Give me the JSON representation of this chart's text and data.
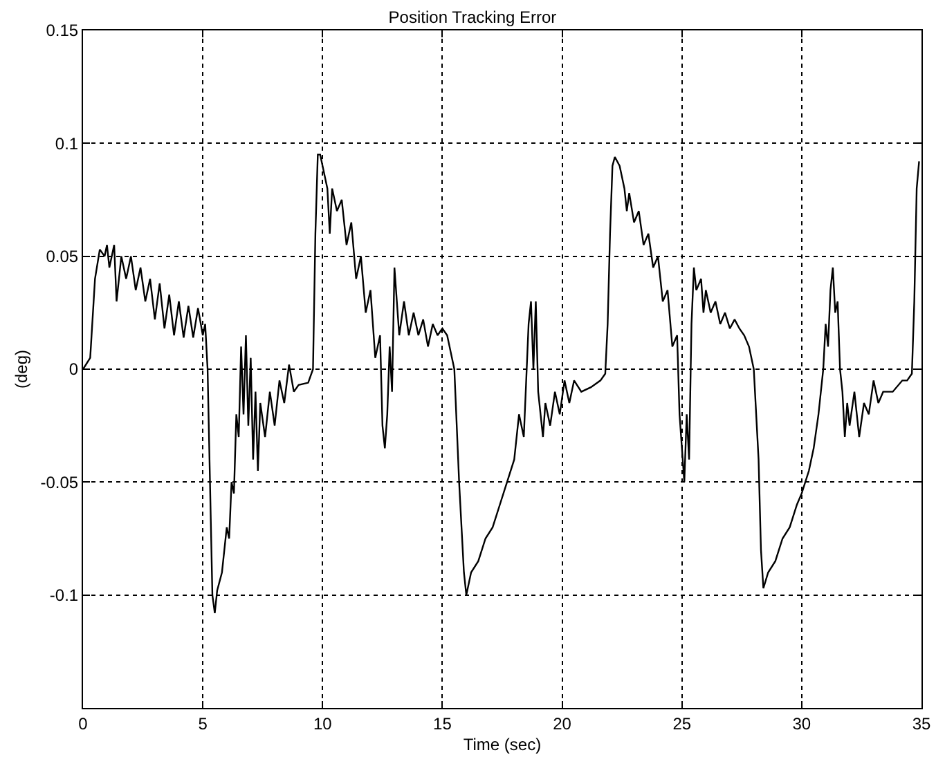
{
  "chart_data": {
    "type": "line",
    "title": "Position Tracking Error",
    "xlabel": "Time (sec)",
    "ylabel": "(deg)",
    "xlim": [
      0,
      35
    ],
    "xticks": [
      0,
      5,
      10,
      15,
      20,
      25,
      30,
      35
    ],
    "ylim": [
      -0.15,
      0.15
    ],
    "yticks": [
      {
        "value": -0.15,
        "label": null
      },
      -0.1,
      -0.05,
      0,
      0.05,
      0.1,
      0.15
    ],
    "grid": true,
    "line_style": "solid",
    "marker": "none",
    "series": [
      {
        "color": "#000000",
        "x": [
          0,
          0.3,
          0.5,
          0.7,
          0.9,
          1.0,
          1.1,
          1.3,
          1.4,
          1.6,
          1.8,
          2.0,
          2.2,
          2.4,
          2.6,
          2.8,
          3.0,
          3.2,
          3.4,
          3.6,
          3.8,
          4.0,
          4.2,
          4.4,
          4.6,
          4.8,
          5.0,
          5.1,
          5.2,
          5.3,
          5.4,
          5.5,
          5.6,
          5.8,
          5.9,
          6.0,
          6.1,
          6.2,
          6.3,
          6.4,
          6.5,
          6.6,
          6.7,
          6.8,
          6.9,
          7.0,
          7.1,
          7.2,
          7.3,
          7.4,
          7.6,
          7.8,
          8.0,
          8.2,
          8.4,
          8.6,
          8.8,
          9.0,
          9.4,
          9.6,
          9.7,
          9.8,
          9.9,
          10.0,
          10.2,
          10.3,
          10.4,
          10.6,
          10.8,
          11.0,
          11.2,
          11.4,
          11.6,
          11.8,
          12.0,
          12.2,
          12.4,
          12.5,
          12.6,
          12.7,
          12.8,
          12.9,
          13.0,
          13.1,
          13.2,
          13.4,
          13.6,
          13.8,
          14.0,
          14.2,
          14.4,
          14.6,
          14.8,
          15.0,
          15.2,
          15.3,
          15.5,
          15.7,
          15.9,
          16.0,
          16.2,
          16.5,
          16.8,
          17.1,
          17.4,
          17.7,
          18.0,
          18.2,
          18.4,
          18.6,
          18.7,
          18.8,
          18.9,
          19.0,
          19.1,
          19.2,
          19.3,
          19.5,
          19.7,
          19.9,
          20.1,
          20.3,
          20.5,
          20.8,
          21.2,
          21.6,
          21.8,
          21.9,
          22.0,
          22.1,
          22.2,
          22.4,
          22.6,
          22.7,
          22.8,
          23.0,
          23.2,
          23.4,
          23.6,
          23.8,
          24.0,
          24.2,
          24.4,
          24.6,
          24.8,
          24.9,
          25.0,
          25.1,
          25.2,
          25.3,
          25.4,
          25.5,
          25.6,
          25.8,
          25.9,
          26.0,
          26.2,
          26.4,
          26.6,
          26.8,
          27.0,
          27.2,
          27.4,
          27.6,
          27.8,
          28.0,
          28.2,
          28.3,
          28.4,
          28.6,
          28.9,
          29.2,
          29.5,
          29.8,
          30.0,
          30.3,
          30.5,
          30.7,
          30.9,
          31.0,
          31.1,
          31.2,
          31.3,
          31.4,
          31.5,
          31.6,
          31.7,
          31.8,
          31.9,
          32.0,
          32.2,
          32.4,
          32.6,
          32.8,
          33.0,
          33.2,
          33.4,
          33.8,
          34.2,
          34.4,
          34.6,
          34.7,
          34.8,
          34.9
        ],
        "values": [
          0,
          0.005,
          0.04,
          0.053,
          0.05,
          0.055,
          0.045,
          0.055,
          0.03,
          0.05,
          0.04,
          0.05,
          0.035,
          0.045,
          0.03,
          0.04,
          0.022,
          0.038,
          0.018,
          0.033,
          0.015,
          0.03,
          0.014,
          0.028,
          0.014,
          0.027,
          0.015,
          0.02,
          0.0,
          -0.05,
          -0.1,
          -0.108,
          -0.098,
          -0.09,
          -0.08,
          -0.07,
          -0.075,
          -0.05,
          -0.055,
          -0.02,
          -0.03,
          0.01,
          -0.02,
          0.015,
          -0.025,
          0.005,
          -0.04,
          -0.01,
          -0.045,
          -0.015,
          -0.03,
          -0.01,
          -0.025,
          -0.005,
          -0.015,
          0.002,
          -0.01,
          -0.007,
          -0.006,
          0.0,
          0.06,
          0.095,
          0.095,
          0.09,
          0.08,
          0.06,
          0.08,
          0.07,
          0.075,
          0.055,
          0.065,
          0.04,
          0.05,
          0.025,
          0.035,
          0.005,
          0.015,
          -0.025,
          -0.035,
          -0.02,
          0.01,
          -0.01,
          0.045,
          0.03,
          0.015,
          0.03,
          0.015,
          0.025,
          0.015,
          0.022,
          0.01,
          0.02,
          0.015,
          0.018,
          0.015,
          0.01,
          0.0,
          -0.05,
          -0.09,
          -0.1,
          -0.09,
          -0.085,
          -0.075,
          -0.07,
          -0.06,
          -0.05,
          -0.04,
          -0.02,
          -0.03,
          0.02,
          0.03,
          0.0,
          0.03,
          -0.01,
          -0.02,
          -0.03,
          -0.015,
          -0.025,
          -0.01,
          -0.02,
          -0.005,
          -0.015,
          -0.005,
          -0.01,
          -0.008,
          -0.005,
          -0.002,
          0.02,
          0.06,
          0.09,
          0.094,
          0.09,
          0.08,
          0.07,
          0.078,
          0.065,
          0.07,
          0.055,
          0.06,
          0.045,
          0.05,
          0.03,
          0.035,
          0.01,
          0.015,
          -0.02,
          -0.035,
          -0.05,
          -0.02,
          -0.04,
          0.02,
          0.045,
          0.035,
          0.04,
          0.025,
          0.035,
          0.025,
          0.03,
          0.02,
          0.025,
          0.018,
          0.022,
          0.018,
          0.015,
          0.01,
          0.0,
          -0.04,
          -0.08,
          -0.097,
          -0.09,
          -0.085,
          -0.075,
          -0.07,
          -0.06,
          -0.055,
          -0.045,
          -0.035,
          -0.02,
          0.0,
          0.02,
          0.01,
          0.035,
          0.045,
          0.025,
          0.03,
          0.0,
          -0.01,
          -0.03,
          -0.015,
          -0.025,
          -0.01,
          -0.03,
          -0.015,
          -0.02,
          -0.005,
          -0.015,
          -0.01,
          -0.01,
          -0.005,
          -0.005,
          -0.002,
          0.03,
          0.08,
          0.092
        ]
      }
    ]
  }
}
